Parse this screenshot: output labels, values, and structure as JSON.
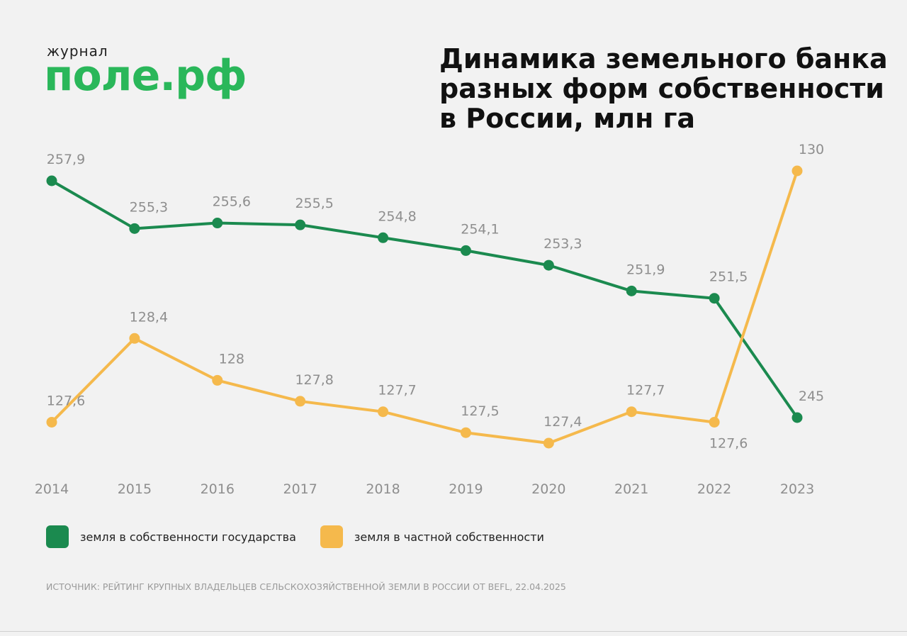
{
  "logo": {
    "small": "журнал",
    "big": "поле.рф"
  },
  "source_note": "ИСТОЧНИК: РЕЙТИНГ КРУПНЫХ ВЛАДЕЛЬЦЕВ СЕЛЬСКОХОЗЯЙСТВЕННОЙ ЗЕМЛИ В РОССИИ ОТ BEFL, 22.04.2025",
  "colors": {
    "brand": "#2ab75a",
    "state": "#1b8a4f",
    "private": "#f5b94c",
    "label": "#8e8e8e",
    "title": "#111111"
  },
  "chart_data": {
    "type": "line",
    "title_lines": [
      "Динамика земельного банка",
      "разных форм собственности",
      "в России, млн га"
    ],
    "categories": [
      "2014",
      "2015",
      "2016",
      "2017",
      "2018",
      "2019",
      "2020",
      "2021",
      "2022",
      "2023"
    ],
    "series": [
      {
        "name": "земля в собственности государства",
        "values": [
          257.9,
          255.3,
          255.6,
          255.5,
          254.8,
          254.1,
          253.3,
          251.9,
          251.5,
          245
        ],
        "labels": [
          "257,9",
          "255,3",
          "255,6",
          "255,5",
          "254,8",
          "254,1",
          "253,3",
          "251,9",
          "251,5",
          "245"
        ]
      },
      {
        "name": "земля в частной собственности",
        "values": [
          127.6,
          128.4,
          128,
          127.8,
          127.7,
          127.5,
          127.4,
          127.7,
          127.6,
          130
        ],
        "labels": [
          "127,6",
          "128,4",
          "128",
          "127,8",
          "127,7",
          "127,5",
          "127,4",
          "127,7",
          "127,6",
          "130"
        ]
      }
    ],
    "grid": false,
    "legend_position": "bottom-left"
  }
}
